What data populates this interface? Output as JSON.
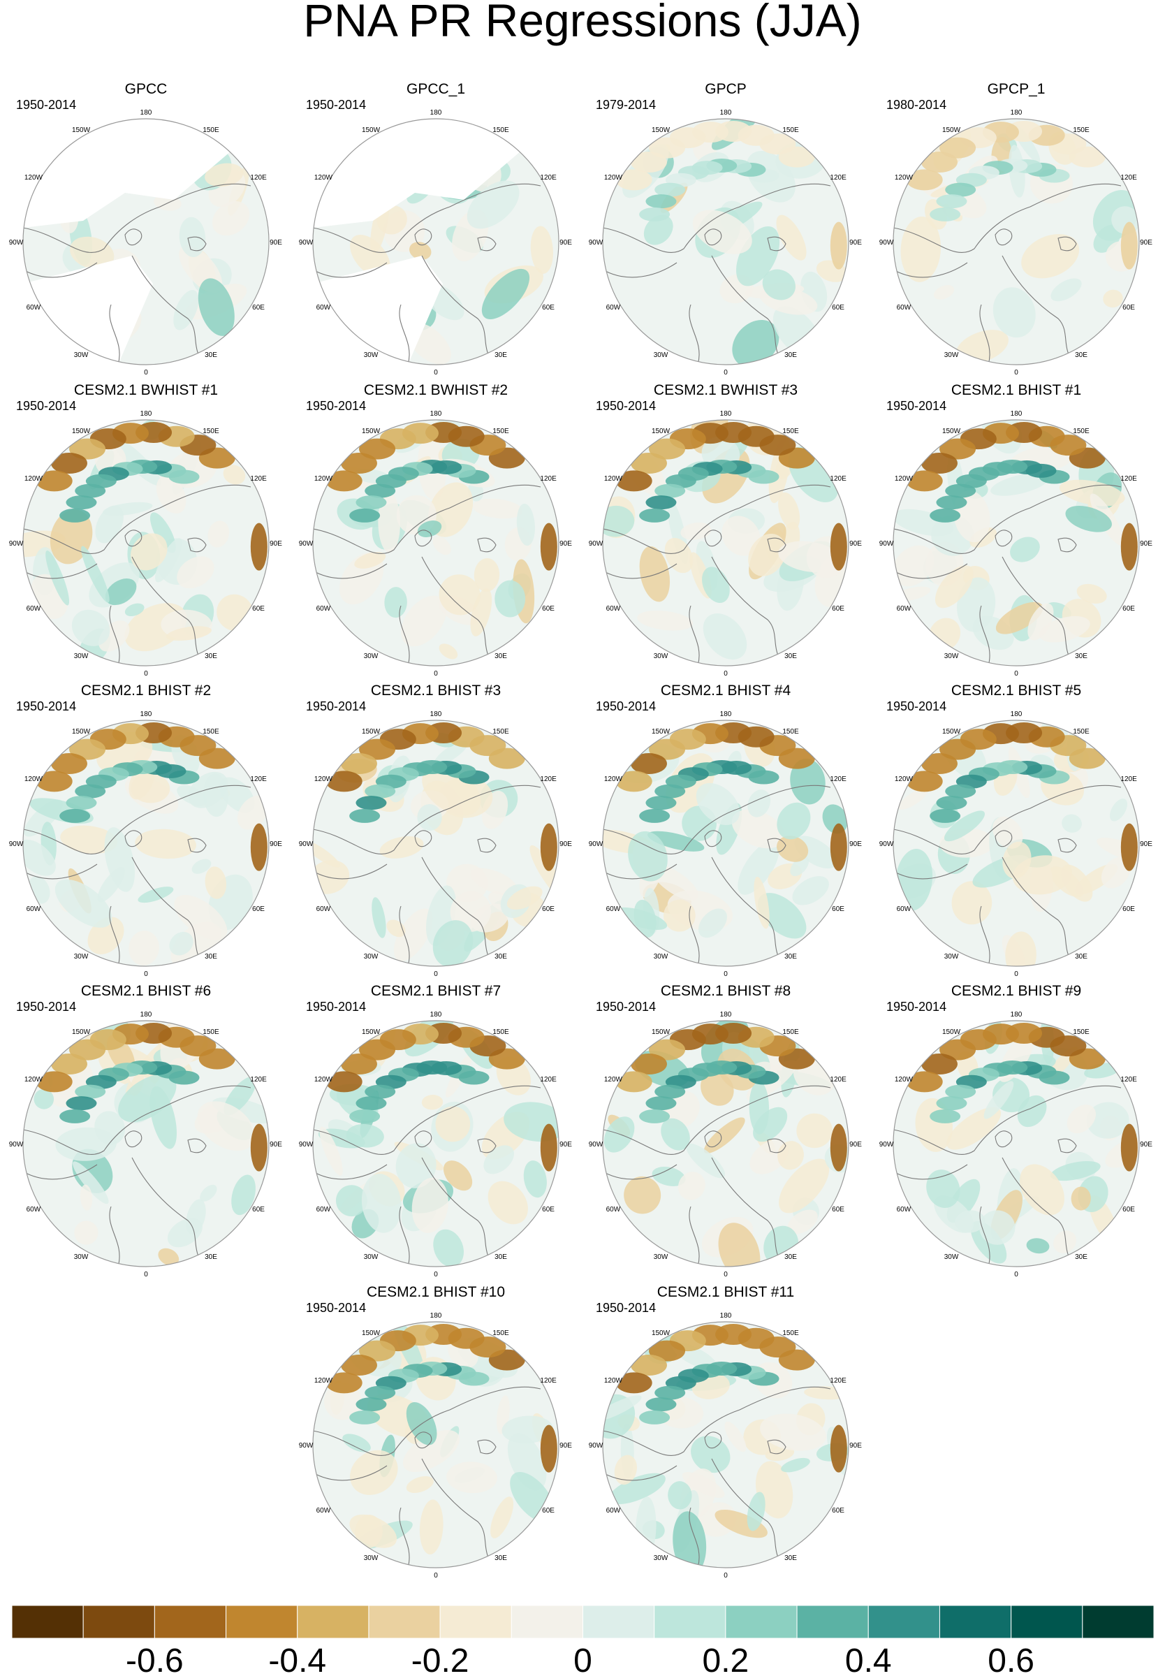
{
  "chart_data": {
    "type": "map",
    "title": "PNA PR Regressions (JJA)",
    "projection": "North polar stereographic",
    "longitude_labels": [
      "0",
      "30E",
      "60E",
      "90E",
      "120E",
      "150E",
      "180",
      "150W",
      "120W",
      "90W",
      "60W",
      "30W"
    ],
    "colorbar": {
      "colors": [
        "#543005",
        "#7d4a0f",
        "#a2661c",
        "#c0862f",
        "#d7b263",
        "#ead1a0",
        "#f5ebd4",
        "#f3f1ea",
        "#ddeeea",
        "#bde6dc",
        "#8cd0c1",
        "#5bb2a4",
        "#32918b",
        "#0f6e69",
        "#00564e",
        "#003c30"
      ],
      "range": [
        -0.8,
        0.8
      ],
      "step": 0.1,
      "tick_values": [
        -0.6,
        -0.4,
        -0.2,
        0,
        0.2,
        0.4,
        0.6
      ],
      "tick_labels": [
        "-0.6",
        "-0.4",
        "-0.2",
        "0",
        "0.2",
        "0.4",
        "0.6"
      ]
    },
    "panels": [
      {
        "name": "GPCC",
        "period": "1950-2014"
      },
      {
        "name": "GPCC_1",
        "period": "1950-2014"
      },
      {
        "name": "GPCP",
        "period": "1979-2014"
      },
      {
        "name": "GPCP_1",
        "period": "1980-2014"
      },
      {
        "name": "CESM2.1 BWHIST #1",
        "period": "1950-2014"
      },
      {
        "name": "CESM2.1 BWHIST #2",
        "period": "1950-2014"
      },
      {
        "name": "CESM2.1 BWHIST #3",
        "period": "1950-2014"
      },
      {
        "name": "CESM2.1 BHIST #1",
        "period": "1950-2014"
      },
      {
        "name": "CESM2.1 BHIST #2",
        "period": "1950-2014"
      },
      {
        "name": "CESM2.1 BHIST #3",
        "period": "1950-2014"
      },
      {
        "name": "CESM2.1 BHIST #4",
        "period": "1950-2014"
      },
      {
        "name": "CESM2.1 BHIST #5",
        "period": "1950-2014"
      },
      {
        "name": "CESM2.1 BHIST #6",
        "period": "1950-2014"
      },
      {
        "name": "CESM2.1 BHIST #7",
        "period": "1950-2014"
      },
      {
        "name": "CESM2.1 BHIST #8",
        "period": "1950-2014"
      },
      {
        "name": "CESM2.1 BHIST #9",
        "period": "1950-2014"
      },
      {
        "name": "CESM2.1 BHIST #10",
        "period": "1950-2014"
      },
      {
        "name": "CESM2.1 BHIST #11",
        "period": "1950-2014"
      }
    ]
  }
}
